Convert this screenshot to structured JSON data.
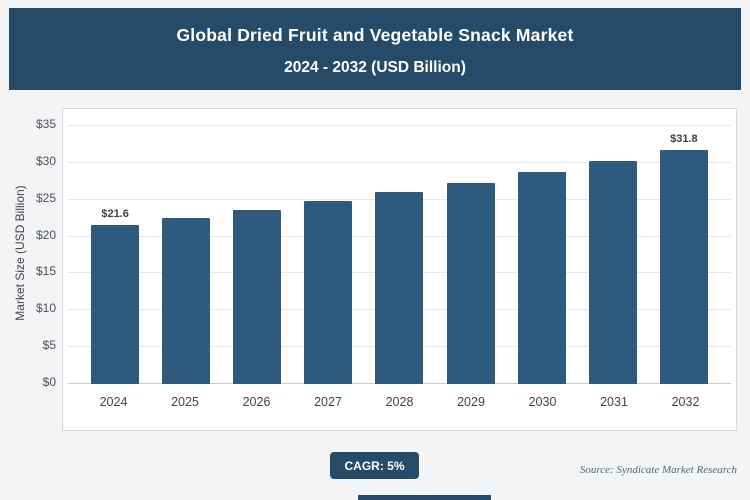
{
  "header": {
    "title_line1": "Global Dried Fruit and Vegetable Snack Market",
    "title_line2": "2024 - 2032 (USD Billion)"
  },
  "chart_data": {
    "type": "bar",
    "title": "Global Dried Fruit and Vegetable Snack Market 2024 - 2032 (USD Billion)",
    "xlabel": "",
    "ylabel": "Market Size (USD Billion)",
    "ylim": [
      0,
      35
    ],
    "ytick_step": 5,
    "yticks": [
      "$0",
      "$5",
      "$10",
      "$15",
      "$20",
      "$25",
      "$30",
      "$35"
    ],
    "categories": [
      "2024",
      "2025",
      "2026",
      "2027",
      "2028",
      "2029",
      "2030",
      "2031",
      "2032"
    ],
    "values": [
      21.6,
      22.5,
      23.6,
      24.8,
      26.1,
      27.3,
      28.7,
      30.2,
      31.8
    ],
    "value_labels": [
      "$21.6",
      "",
      "",
      "",
      "",
      "",
      "",
      "",
      "$31.8"
    ],
    "bar_color": "#2d5a7d",
    "grid": true,
    "legend": false
  },
  "footer": {
    "cagr_label": "CAGR: 5%",
    "source": "Source: Syndicate Market Research"
  },
  "colors": {
    "navy": "#254b69",
    "bar": "#2d5a7d",
    "panel_bg": "#ffffff",
    "page_bg": "#f3f4f6"
  }
}
